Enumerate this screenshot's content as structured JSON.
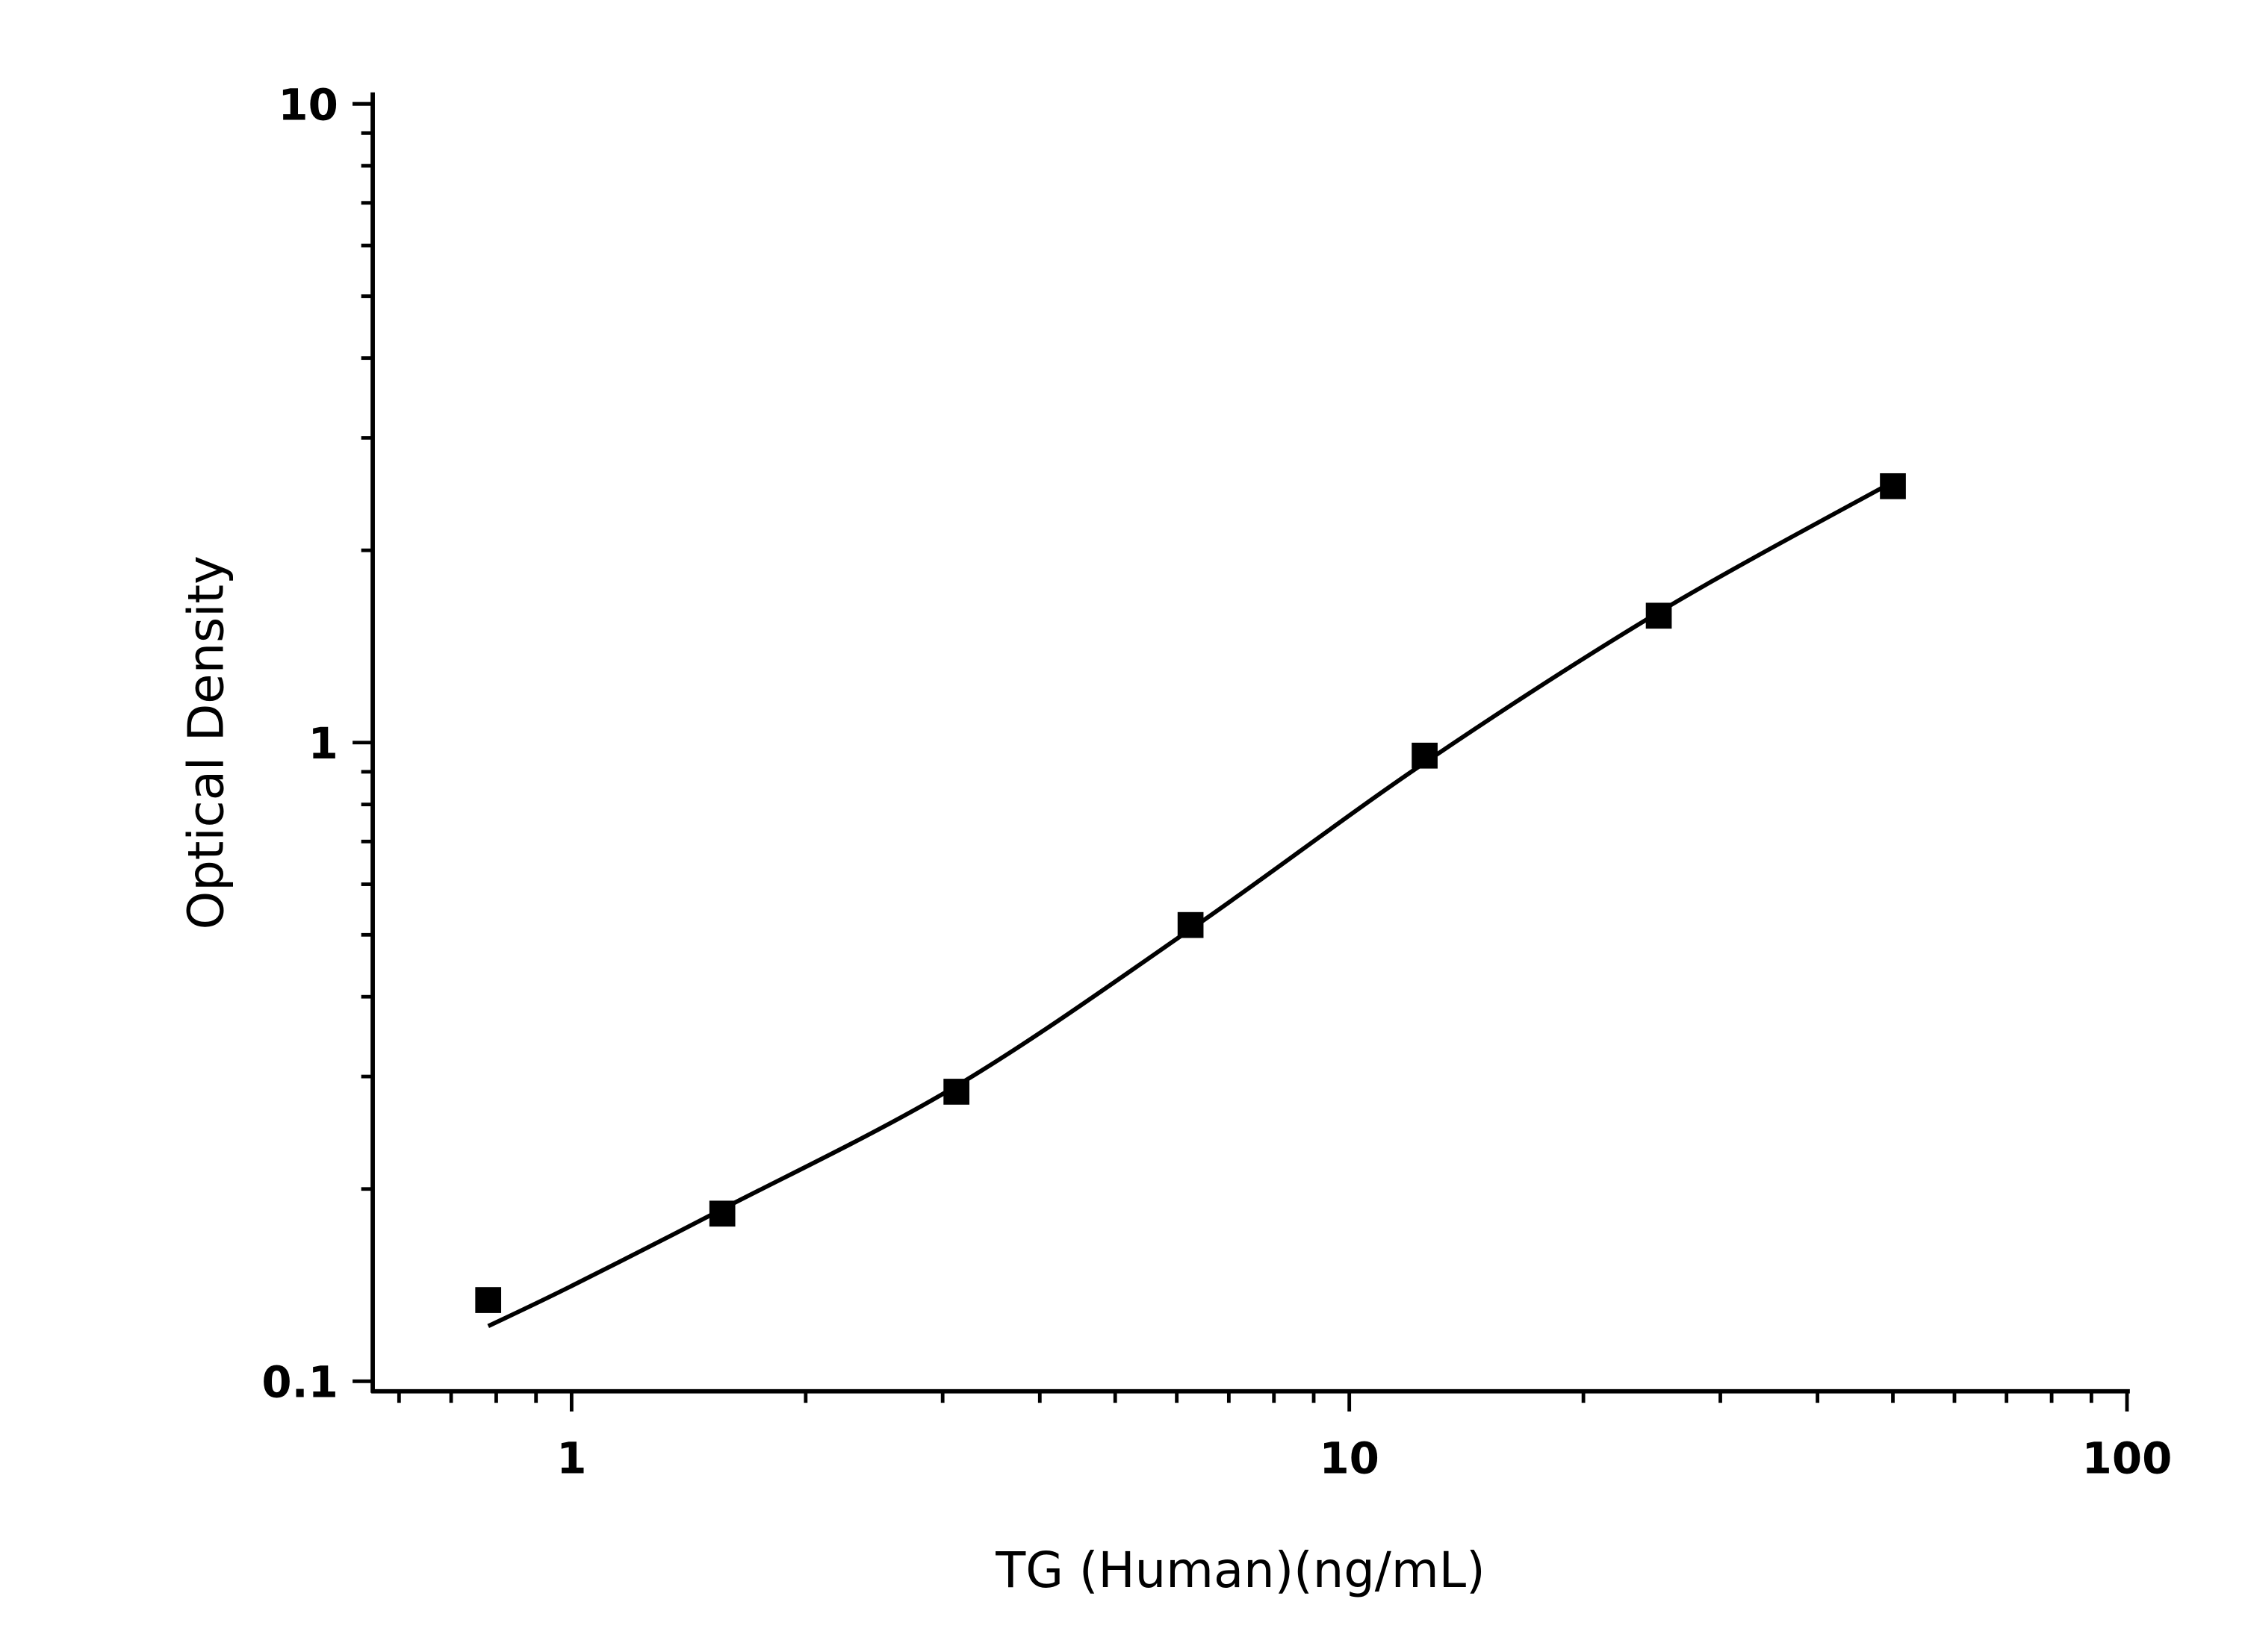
{
  "chart_data": {
    "type": "scatter",
    "title": "",
    "xlabel": "TG (Human)(ng/mL)",
    "ylabel": "Optical Density",
    "xscale": "log",
    "yscale": "log",
    "xlim": [
      0.555,
      100
    ],
    "ylim": [
      0.1,
      10
    ],
    "xticks": [
      {
        "v": 1,
        "label": "1"
      },
      {
        "v": 10,
        "label": "10"
      },
      {
        "v": 100,
        "label": "100"
      }
    ],
    "yticks": [
      {
        "v": 0.1,
        "label": "0.1"
      },
      {
        "v": 1,
        "label": "1"
      },
      {
        "v": 10,
        "label": "10"
      }
    ],
    "grid": false,
    "marker": "square",
    "color": "#000000",
    "points": [
      {
        "x": 0.78125,
        "y": 0.134
      },
      {
        "x": 1.5625,
        "y": 0.183
      },
      {
        "x": 3.125,
        "y": 0.284
      },
      {
        "x": 6.25,
        "y": 0.518
      },
      {
        "x": 12.5,
        "y": 0.954
      },
      {
        "x": 25,
        "y": 1.58
      },
      {
        "x": 50,
        "y": 2.52
      }
    ],
    "fit_curve": [
      {
        "x": 0.78125,
        "y": 0.122
      },
      {
        "x": 1,
        "y": 0.141
      },
      {
        "x": 1.5625,
        "y": 0.186
      },
      {
        "x": 3.125,
        "y": 0.29
      },
      {
        "x": 6.25,
        "y": 0.51
      },
      {
        "x": 12.5,
        "y": 0.93
      },
      {
        "x": 25,
        "y": 1.6
      },
      {
        "x": 50,
        "y": 2.56
      }
    ]
  }
}
